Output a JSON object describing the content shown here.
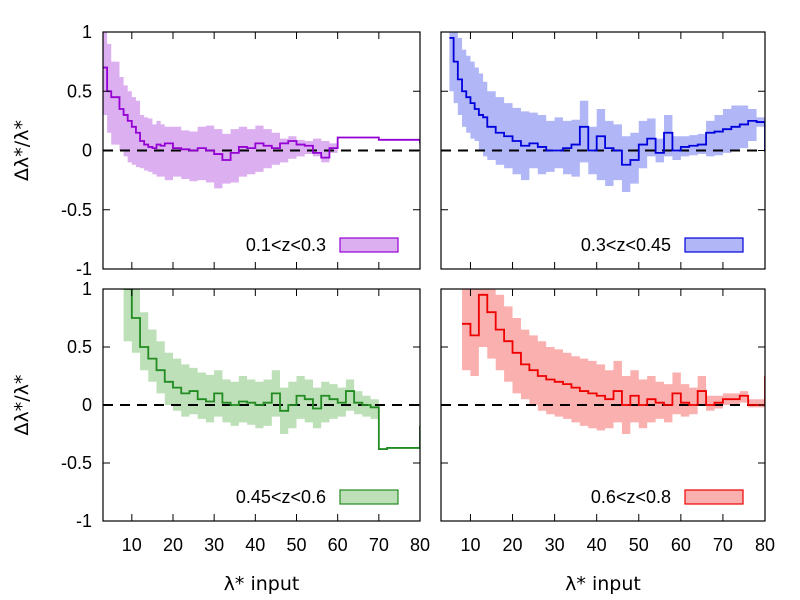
{
  "chart_data": [
    {
      "type": "line",
      "panel": "top-left",
      "legend": "0.1<z<0.3",
      "color": "#9400d3",
      "fill": "#dcaff0",
      "xlim": [
        3,
        80
      ],
      "ylim": [
        -1,
        1
      ],
      "xticks": [],
      "yticks": [
        "-1",
        "-0.5",
        "0",
        "0.5",
        "1"
      ],
      "xlabel": "",
      "ylabel": "Δλ*/λ*",
      "reference_line": 0,
      "x": [
        3,
        4,
        5,
        7,
        8,
        9,
        10,
        11,
        12,
        13,
        14,
        15,
        16,
        17,
        18,
        20,
        22,
        24,
        26,
        28,
        30,
        32,
        34,
        36,
        38,
        40,
        42,
        44,
        46,
        48,
        50,
        52,
        54,
        56,
        58,
        60,
        70,
        80
      ],
      "y": [
        0.7,
        0.5,
        0.45,
        0.35,
        0.3,
        0.25,
        0.2,
        0.15,
        0.08,
        0.05,
        0.03,
        0.02,
        0.05,
        0.04,
        0.06,
        0.02,
        0.01,
        0.0,
        0.02,
        0.0,
        -0.03,
        -0.08,
        -0.02,
        0.03,
        0.02,
        0.06,
        0.04,
        0.02,
        0.06,
        0.08,
        0.05,
        0.04,
        -0.02,
        -0.06,
        0.02,
        0.11,
        0.09,
        0.06
      ],
      "lower": [
        0.3,
        0.15,
        0.05,
        0.0,
        -0.05,
        -0.1,
        -0.12,
        -0.14,
        -0.15,
        -0.17,
        -0.18,
        -0.2,
        -0.22,
        -0.22,
        -0.25,
        -0.22,
        -0.24,
        -0.26,
        -0.25,
        -0.27,
        -0.32,
        -0.28,
        -0.27,
        -0.22,
        -0.2,
        -0.18,
        -0.15,
        -0.12,
        -0.1,
        -0.07,
        -0.05,
        -0.03,
        -0.05,
        -0.1,
        -0.02,
        0.11,
        0.09,
        0.06
      ],
      "upper": [
        1.0,
        0.9,
        0.75,
        0.62,
        0.55,
        0.5,
        0.45,
        0.42,
        0.3,
        0.28,
        0.27,
        0.22,
        0.25,
        0.22,
        0.2,
        0.2,
        0.17,
        0.16,
        0.2,
        0.21,
        0.18,
        0.14,
        0.18,
        0.2,
        0.18,
        0.21,
        0.18,
        0.15,
        0.1,
        0.12,
        0.09,
        0.08,
        0.1,
        0.08,
        0.06,
        0.11,
        0.09,
        0.06
      ]
    },
    {
      "type": "line",
      "panel": "top-right",
      "legend": "0.3<z<0.45",
      "color": "#0000dd",
      "fill": "#b0b6f6",
      "xlim": [
        3,
        80
      ],
      "ylim": [
        -1,
        1
      ],
      "xticks": [],
      "yticks": [],
      "xlabel": "",
      "ylabel": "",
      "reference_line": 0,
      "x": [
        5,
        6,
        7,
        8,
        9,
        10,
        11,
        12,
        13,
        14,
        16,
        18,
        20,
        22,
        24,
        26,
        28,
        30,
        32,
        34,
        36,
        38,
        40,
        42,
        44,
        46,
        48,
        50,
        52,
        54,
        56,
        58,
        60,
        62,
        64,
        66,
        68,
        70,
        72,
        74,
        76,
        78,
        80
      ],
      "y": [
        0.95,
        0.75,
        0.6,
        0.5,
        0.45,
        0.4,
        0.35,
        0.3,
        0.28,
        0.2,
        0.15,
        0.12,
        0.08,
        0.04,
        0.06,
        0.03,
        0.0,
        0.0,
        0.02,
        0.05,
        0.2,
        0.0,
        0.12,
        0.02,
        0.0,
        -0.12,
        -0.08,
        0.05,
        0.1,
        -0.02,
        0.15,
        0.0,
        0.03,
        0.04,
        0.05,
        0.15,
        0.16,
        0.18,
        0.2,
        0.22,
        0.25,
        0.24,
        0.0
      ],
      "lower": [
        0.5,
        0.4,
        0.3,
        0.2,
        0.15,
        0.1,
        0.08,
        0.0,
        -0.05,
        -0.08,
        -0.12,
        -0.15,
        -0.2,
        -0.25,
        -0.15,
        -0.2,
        -0.18,
        -0.15,
        -0.2,
        -0.22,
        -0.1,
        -0.2,
        -0.25,
        -0.3,
        -0.25,
        -0.35,
        -0.28,
        -0.15,
        -0.05,
        -0.1,
        -0.05,
        -0.08,
        -0.05,
        -0.04,
        -0.03,
        -0.05,
        -0.04,
        -0.02,
        0.0,
        0.02,
        0.08,
        0.2,
        0.0
      ],
      "upper": [
        1.0,
        1.0,
        0.95,
        0.85,
        0.8,
        0.75,
        0.7,
        0.65,
        0.58,
        0.5,
        0.45,
        0.4,
        0.36,
        0.33,
        0.32,
        0.3,
        0.25,
        0.28,
        0.25,
        0.26,
        0.42,
        0.2,
        0.35,
        0.25,
        0.22,
        0.12,
        0.15,
        0.25,
        0.27,
        0.1,
        0.3,
        0.12,
        0.12,
        0.13,
        0.14,
        0.25,
        0.3,
        0.35,
        0.38,
        0.38,
        0.35,
        0.28,
        0.0
      ]
    },
    {
      "type": "line",
      "panel": "bottom-left",
      "legend": "0.45<z<0.6",
      "color": "#228b22",
      "fill": "#bde0b8",
      "xlim": [
        3,
        80
      ],
      "ylim": [
        -1,
        1
      ],
      "xticks": [
        "10",
        "20",
        "30",
        "40",
        "50",
        "60",
        "70",
        "80"
      ],
      "yticks": [
        "-1",
        "-0.5",
        "0",
        "0.5",
        "1"
      ],
      "xlabel": "λ* input",
      "ylabel": "Δλ*/λ*",
      "reference_line": 0,
      "x": [
        8,
        10,
        12,
        14,
        16,
        18,
        20,
        22,
        24,
        26,
        28,
        30,
        32,
        34,
        36,
        38,
        40,
        42,
        44,
        46,
        48,
        50,
        52,
        54,
        56,
        58,
        60,
        62,
        64,
        66,
        68,
        70,
        72,
        80
      ],
      "y": [
        1.0,
        0.75,
        0.5,
        0.4,
        0.3,
        0.2,
        0.15,
        0.1,
        0.12,
        0.05,
        0.03,
        0.1,
        0.02,
        0.0,
        0.03,
        0.02,
        0.0,
        0.02,
        0.1,
        -0.05,
        0.0,
        0.08,
        0.05,
        -0.03,
        0.08,
        0.05,
        0.02,
        0.12,
        0.02,
        0.0,
        -0.02,
        -0.38,
        -0.37,
        -0.18
      ],
      "lower": [
        0.55,
        0.45,
        0.3,
        0.2,
        0.1,
        0.0,
        -0.05,
        -0.1,
        -0.08,
        -0.12,
        -0.15,
        -0.1,
        -0.15,
        -0.18,
        -0.15,
        -0.17,
        -0.2,
        -0.18,
        -0.1,
        -0.25,
        -0.2,
        -0.12,
        -0.15,
        -0.2,
        -0.15,
        -0.12,
        -0.1,
        -0.05,
        -0.08,
        -0.1,
        -0.12,
        -0.38,
        -0.37,
        -0.18
      ],
      "upper": [
        1.0,
        1.0,
        0.8,
        0.65,
        0.55,
        0.45,
        0.4,
        0.35,
        0.32,
        0.28,
        0.26,
        0.3,
        0.22,
        0.2,
        0.25,
        0.22,
        0.2,
        0.22,
        0.3,
        0.15,
        0.2,
        0.25,
        0.22,
        0.15,
        0.2,
        0.18,
        0.15,
        0.22,
        0.12,
        0.08,
        0.05,
        -0.38,
        -0.37,
        -0.18
      ]
    },
    {
      "type": "line",
      "panel": "bottom-right",
      "legend": "0.6<z<0.8",
      "color": "#ee0000",
      "fill": "#fbb0b0",
      "xlim": [
        3,
        80
      ],
      "ylim": [
        -1,
        1
      ],
      "xticks": [
        "10",
        "20",
        "30",
        "40",
        "50",
        "60",
        "70",
        "80"
      ],
      "yticks": [],
      "xlabel": "λ* input",
      "ylabel": "",
      "reference_line": 0,
      "x": [
        8,
        10,
        12,
        14,
        16,
        18,
        20,
        22,
        24,
        26,
        28,
        30,
        32,
        34,
        36,
        38,
        40,
        42,
        44,
        46,
        48,
        50,
        52,
        54,
        56,
        58,
        60,
        62,
        64,
        66,
        68,
        70,
        72,
        74,
        76,
        78,
        80
      ],
      "y": [
        0.7,
        0.6,
        0.95,
        0.8,
        0.65,
        0.55,
        0.45,
        0.35,
        0.3,
        0.25,
        0.22,
        0.2,
        0.18,
        0.15,
        0.12,
        0.1,
        0.08,
        0.05,
        0.12,
        0.0,
        0.08,
        0.0,
        0.05,
        0.02,
        0.0,
        0.1,
        0.02,
        0.0,
        0.12,
        0.0,
        0.02,
        0.05,
        0.05,
        0.08,
        0.0,
        0.0,
        0.25
      ],
      "lower": [
        0.3,
        0.25,
        0.5,
        0.4,
        0.3,
        0.2,
        0.1,
        0.05,
        0.0,
        -0.05,
        -0.08,
        -0.1,
        -0.12,
        -0.15,
        -0.18,
        -0.2,
        -0.22,
        -0.2,
        -0.15,
        -0.25,
        -0.15,
        -0.2,
        -0.15,
        -0.12,
        -0.15,
        -0.08,
        -0.1,
        -0.08,
        0.0,
        -0.05,
        -0.03,
        0.0,
        0.0,
        0.02,
        -0.02,
        -0.02,
        0.1
      ],
      "upper": [
        1.0,
        1.0,
        1.0,
        1.0,
        0.95,
        0.85,
        0.75,
        0.65,
        0.6,
        0.55,
        0.5,
        0.48,
        0.45,
        0.42,
        0.4,
        0.38,
        0.35,
        0.3,
        0.38,
        0.25,
        0.3,
        0.22,
        0.25,
        0.2,
        0.18,
        0.28,
        0.18,
        0.15,
        0.25,
        0.08,
        0.08,
        0.1,
        0.1,
        0.12,
        0.05,
        0.05,
        0.42
      ]
    }
  ]
}
